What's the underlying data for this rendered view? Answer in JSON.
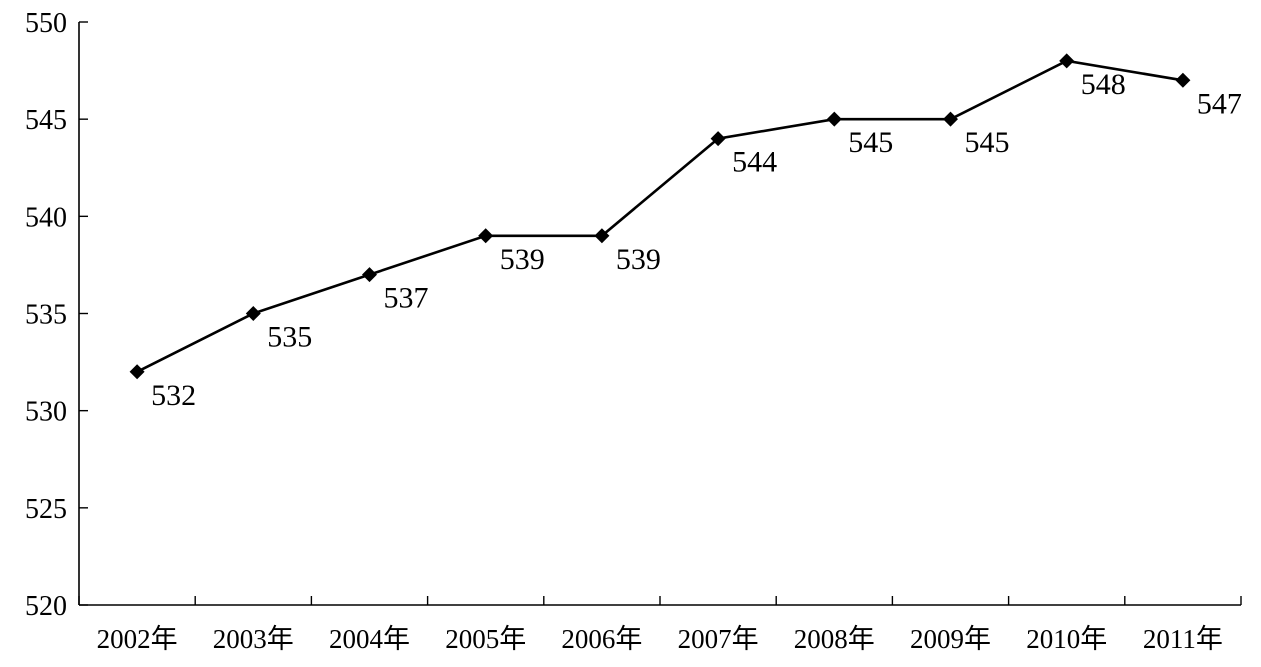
{
  "chart_data": {
    "type": "line",
    "title": "",
    "xlabel": "",
    "ylabel": "",
    "categories": [
      "2002年",
      "2003年",
      "2004年",
      "2005年",
      "2006年",
      "2007年",
      "2008年",
      "2009年",
      "2010年",
      "2011年"
    ],
    "series": [
      {
        "values": [
          532,
          535,
          537,
          539,
          539,
          544,
          545,
          545,
          548,
          547
        ]
      }
    ],
    "data_labels": [
      "532",
      "535",
      "537",
      "539",
      "539",
      "544",
      "545",
      "545",
      "548",
      "547"
    ],
    "ylim": [
      520,
      550
    ],
    "yticks": [
      "520",
      "525",
      "530",
      "535",
      "540",
      "545",
      "550"
    ],
    "grid": false,
    "legend": "none",
    "marker": "diamond",
    "colors": {
      "line": "#000000",
      "axis": "#000000",
      "background": "#ffffff"
    }
  }
}
